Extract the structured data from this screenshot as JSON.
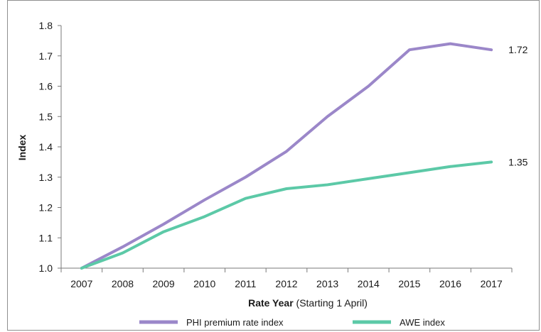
{
  "chart_data": {
    "type": "line",
    "title": "",
    "xlabel_bold": "Rate Year",
    "xlabel_rest": " (Starting 1 April)",
    "ylabel": "Index",
    "categories": [
      "2007",
      "2008",
      "2009",
      "2010",
      "2011",
      "2012",
      "2013",
      "2014",
      "2015",
      "2016",
      "2017"
    ],
    "y_ticks": [
      "1.0",
      "1.1",
      "1.2",
      "1.3",
      "1.4",
      "1.5",
      "1.6",
      "1.7",
      "1.8"
    ],
    "ylim": [
      1.0,
      1.8
    ],
    "grid": false,
    "legend_placement": "bottom",
    "series": [
      {
        "name": "PHI premium rate index",
        "color": "#9b87c9",
        "values": [
          1.0,
          1.07,
          1.145,
          1.225,
          1.3,
          1.385,
          1.5,
          1.6,
          1.72,
          1.74,
          1.72
        ],
        "end_label": "1.72"
      },
      {
        "name": "AWE index",
        "color": "#5cc9a7",
        "values": [
          1.0,
          1.05,
          1.12,
          1.17,
          1.23,
          1.262,
          1.275,
          1.295,
          1.315,
          1.335,
          1.35
        ],
        "end_label": "1.35"
      }
    ]
  }
}
